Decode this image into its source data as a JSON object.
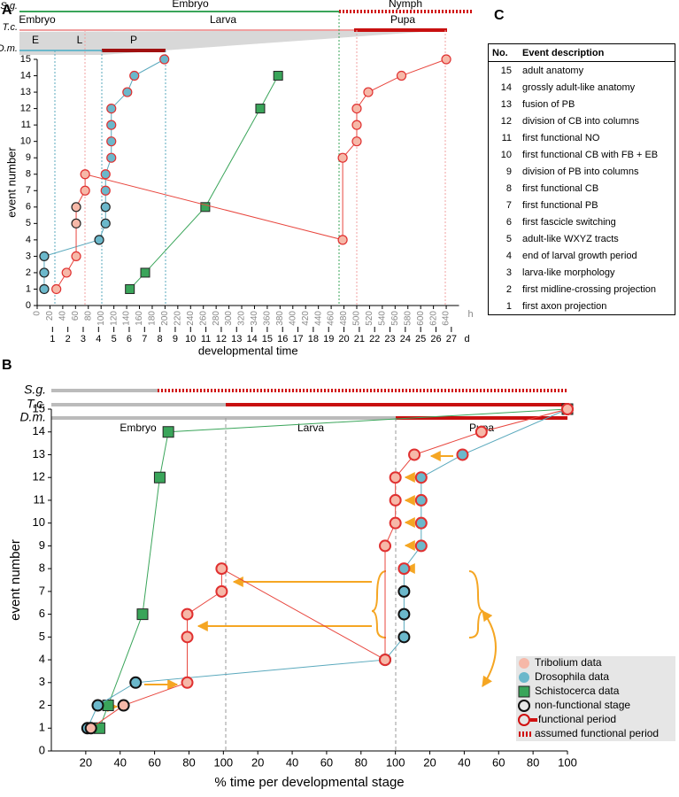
{
  "panel_labels": [
    "A",
    "B",
    "C"
  ],
  "chart_data": [
    {
      "type": "line",
      "xlabel": "developmental time",
      "ylabel": "event number",
      "xlim": [
        0,
        660
      ],
      "ylim": [
        0,
        15
      ],
      "yticks": [
        0,
        1,
        2,
        3,
        4,
        5,
        6,
        7,
        8,
        9,
        10,
        11,
        12,
        13,
        14,
        15
      ],
      "xticks": [
        0,
        20,
        40,
        60,
        80,
        100,
        120,
        140,
        160,
        180,
        200,
        220,
        240,
        260,
        280,
        300,
        320,
        340,
        360,
        380,
        400,
        420,
        440,
        460,
        480,
        500,
        520,
        540,
        560,
        580,
        600,
        620,
        640
      ],
      "x_unit": "h",
      "xtick_rotation": -90,
      "dayticks": [
        {
          "value": 24,
          "label": "1"
        },
        {
          "value": 48,
          "label": "2"
        },
        {
          "value": 72,
          "label": "3"
        },
        {
          "value": 96,
          "label": "4"
        },
        {
          "value": 120,
          "label": "5"
        },
        {
          "value": 144,
          "label": "6"
        },
        {
          "value": 168,
          "label": "7"
        },
        {
          "value": 192,
          "label": "8"
        },
        {
          "value": 216,
          "label": "9"
        },
        {
          "value": 240,
          "label": "10"
        },
        {
          "value": 264,
          "label": "11"
        },
        {
          "value": 288,
          "label": "12"
        },
        {
          "value": 312,
          "label": "13"
        },
        {
          "value": 336,
          "label": "14"
        },
        {
          "value": 360,
          "label": "15"
        },
        {
          "value": 384,
          "label": "16"
        },
        {
          "value": 408,
          "label": "17"
        },
        {
          "value": 432,
          "label": "18"
        },
        {
          "value": 456,
          "label": "19"
        },
        {
          "value": 480,
          "label": "20"
        },
        {
          "value": 504,
          "label": "21"
        },
        {
          "value": 528,
          "label": "22"
        },
        {
          "value": 552,
          "label": "23"
        },
        {
          "value": 576,
          "label": "24"
        },
        {
          "value": 600,
          "label": "25"
        },
        {
          "value": 624,
          "label": "26"
        },
        {
          "value": 648,
          "label": "27"
        }
      ],
      "day_unit": "d",
      "stage_rows": [
        {
          "name": "S.g.",
          "stages": [
            "Embryo",
            "Nymph"
          ]
        },
        {
          "name": "T.c.",
          "stages": [
            "Embryo",
            "Larva",
            "Pupa"
          ]
        },
        {
          "name": "D.m.",
          "stages": [
            "E",
            "L",
            "P"
          ]
        }
      ],
      "series": [
        {
          "name": "Schistocerca",
          "marker": "square",
          "color": "#3aa55a",
          "line_color": "#3aa55a",
          "x": [
            145,
            169,
            263,
            349,
            377
          ],
          "values": [
            1,
            2,
            6,
            12,
            14
          ],
          "edgecolors": [
            "#222",
            "#222",
            "#222",
            "#222",
            "#222"
          ]
        },
        {
          "name": "Drosophila",
          "marker": "circle",
          "color": "#6bb8cb",
          "line_color": "#5aa9bd",
          "x": [
            11,
            11,
            11,
            97,
            107,
            107,
            107,
            107,
            116,
            116,
            116,
            116,
            141,
            152,
            199
          ],
          "values": [
            1,
            2,
            3,
            4,
            5,
            6,
            7,
            8,
            9,
            10,
            11,
            12,
            13,
            14,
            15
          ],
          "edgecolors": [
            "#222",
            "#222",
            "#222",
            "#222",
            "#222",
            "#222",
            "#e03030",
            "#e03030",
            "#e03030",
            "#e03030",
            "#e03030",
            "#e03030",
            "#e03030",
            "#e03030",
            "#e03030"
          ]
        },
        {
          "name": "Tribolium",
          "marker": "circle",
          "color": "#f6b8a8",
          "line_color": "#e8463e",
          "x": [
            30,
            46,
            61,
            61,
            61,
            75,
            75,
            478,
            478,
            500,
            500,
            500,
            518,
            570,
            640
          ],
          "values": [
            1,
            2,
            3,
            5,
            6,
            7,
            8,
            4,
            9,
            10,
            11,
            12,
            13,
            14,
            15
          ],
          "edgecolors": [
            "#e03030",
            "#e03030",
            "#e03030",
            "#222",
            "#222",
            "#e03030",
            "#e03030",
            "#e03030",
            "#e03030",
            "#e03030",
            "#e03030",
            "#e03030",
            "#e03030",
            "#e03030",
            "#e03030"
          ]
        }
      ]
    },
    {
      "type": "line",
      "xlabel": "% time per developmental stage",
      "ylabel": "event number",
      "xlim": [
        0,
        300
      ],
      "ylim": [
        0,
        15
      ],
      "yticks": [
        0,
        1,
        2,
        3,
        4,
        5,
        6,
        7,
        8,
        9,
        10,
        11,
        12,
        13,
        14,
        15
      ],
      "xticks": [
        20,
        40,
        60,
        80,
        100,
        {
          "value": 120,
          "label": "20"
        },
        {
          "value": 140,
          "label": "40"
        },
        {
          "value": 160,
          "label": "60"
        },
        {
          "value": 180,
          "label": "80"
        },
        {
          "value": 200,
          "label": "100"
        },
        {
          "value": 220,
          "label": "20"
        },
        {
          "value": 240,
          "label": "40"
        },
        {
          "value": 260,
          "label": "60"
        },
        {
          "value": 280,
          "label": "80"
        },
        {
          "value": 300,
          "label": "100"
        }
      ],
      "xtick_rotation": 0,
      "stage_rows": [
        {
          "name": "S.g."
        },
        {
          "name": "T.c."
        },
        {
          "name": "D.m."
        }
      ],
      "stages": [
        "Embryo",
        "Larva",
        "Pupa"
      ],
      "series": [
        {
          "name": "Schistocerca data",
          "marker": "square",
          "color": "#3aa55a",
          "line_color": "#3aa55a",
          "x": [
            28,
            33,
            53,
            63,
            68,
            300
          ],
          "values": [
            1,
            2,
            6,
            12,
            14,
            15
          ],
          "edgecolors": [
            "#222",
            "#222",
            "#222",
            "#222",
            "#222",
            "#222"
          ]
        },
        {
          "name": "Drosophila data",
          "marker": "circle",
          "color": "#6bb8cb",
          "line_color": "#5aa9bd",
          "x": [
            21,
            27,
            49,
            194,
            205,
            205,
            205,
            205,
            215,
            215,
            215,
            215,
            239,
            300
          ],
          "values": [
            1,
            2,
            3,
            4,
            5,
            6,
            7,
            8,
            9,
            10,
            11,
            12,
            13,
            15
          ],
          "edgecolors": [
            "#111",
            "#111",
            "#111",
            "#111",
            "#111",
            "#111",
            "#111",
            "#e03030",
            "#e03030",
            "#e03030",
            "#e03030",
            "#e03030",
            "#e03030",
            "#e03030"
          ]
        },
        {
          "name": "Tribolium data",
          "marker": "circle",
          "color": "#f6b8a8",
          "line_color": "#e8463e",
          "x": [
            23,
            42,
            79,
            79,
            79,
            99,
            99,
            194,
            194,
            200,
            200,
            200,
            211,
            250,
            300
          ],
          "values": [
            1,
            2,
            3,
            5,
            6,
            7,
            8,
            4,
            9,
            10,
            11,
            12,
            13,
            14,
            15
          ],
          "edgecolors": [
            "#111",
            "#111",
            "#e03030",
            "#e03030",
            "#e03030",
            "#e03030",
            "#e03030",
            "#e03030",
            "#e03030",
            "#e03030",
            "#e03030",
            "#e03030",
            "#e03030",
            "#e03030",
            "#e03030"
          ]
        }
      ],
      "legend_extra": [
        "non-functional stage",
        "functional period",
        "assumed functional period"
      ],
      "legend_position": "lower right"
    }
  ],
  "table": {
    "header": [
      "No.",
      "Event description"
    ],
    "rows": [
      [
        15,
        "adult anatomy"
      ],
      [
        14,
        "grossly adult-like anatomy"
      ],
      [
        13,
        "fusion of PB"
      ],
      [
        12,
        "division of CB into columns"
      ],
      [
        11,
        "first functional NO"
      ],
      [
        10,
        "first functional CB with FB + EB"
      ],
      [
        9,
        "division of PB into columns"
      ],
      [
        8,
        "first functional CB"
      ],
      [
        7,
        "first functional PB"
      ],
      [
        6,
        "first fascicle switching"
      ],
      [
        5,
        "adult-like WXYZ tracts"
      ],
      [
        4,
        "end of larval growth period"
      ],
      [
        3,
        "larva-like morphology"
      ],
      [
        2,
        "first midline-crossing projection"
      ],
      [
        1,
        "first axon projection"
      ]
    ]
  }
}
